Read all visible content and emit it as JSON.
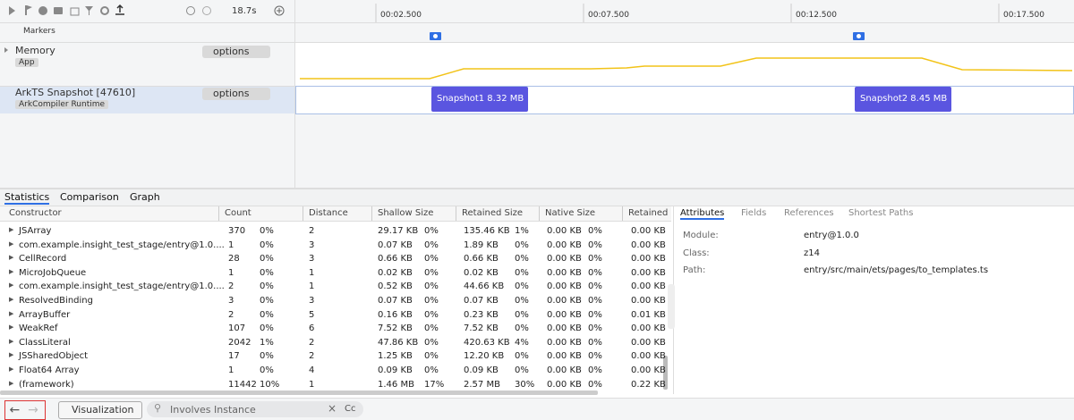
{
  "toolbar": {
    "duration": "18.7s"
  },
  "timeline": {
    "ticks": [
      "00:02.500",
      "00:07.500",
      "00:12.500",
      "00:17.500"
    ],
    "markers_label": "Markers"
  },
  "tracks": [
    {
      "title": "Memory",
      "tag": "App",
      "options": "options"
    },
    {
      "title": "ArkTS Snapshot [47610]",
      "tag": "ArkCompiler Runtime",
      "options": "options"
    }
  ],
  "snapshots": [
    "Snapshot1 8.32 MB",
    "Snapshot2 8.45 MB"
  ],
  "tabs": [
    "Statistics",
    "Comparison",
    "Graph"
  ],
  "table": {
    "columns": [
      "Constructor",
      "Count",
      "Distance",
      "Shallow Size",
      "Retained Size",
      "Native Size",
      "Retained"
    ],
    "rows": [
      [
        "JSArray",
        "370",
        "0%",
        "2",
        "29.17 KB",
        "0%",
        "135.46 KB",
        "1%",
        "0.00 KB",
        "0%",
        "0.00 KB"
      ],
      [
        "com.example.insight_test_stage/entry@1.0....",
        "1",
        "0%",
        "3",
        "0.07 KB",
        "0%",
        "1.89 KB",
        "0%",
        "0.00 KB",
        "0%",
        "0.00 KB"
      ],
      [
        "CellRecord",
        "28",
        "0%",
        "3",
        "0.66 KB",
        "0%",
        "0.66 KB",
        "0%",
        "0.00 KB",
        "0%",
        "0.00 KB"
      ],
      [
        "MicroJobQueue",
        "1",
        "0%",
        "1",
        "0.02 KB",
        "0%",
        "0.02 KB",
        "0%",
        "0.00 KB",
        "0%",
        "0.00 KB"
      ],
      [
        "com.example.insight_test_stage/entry@1.0....",
        "2",
        "0%",
        "1",
        "0.52 KB",
        "0%",
        "44.66 KB",
        "0%",
        "0.00 KB",
        "0%",
        "0.00 KB"
      ],
      [
        "ResolvedBinding",
        "3",
        "0%",
        "3",
        "0.07 KB",
        "0%",
        "0.07 KB",
        "0%",
        "0.00 KB",
        "0%",
        "0.00 KB"
      ],
      [
        "ArrayBuffer",
        "2",
        "0%",
        "5",
        "0.16 KB",
        "0%",
        "0.23 KB",
        "0%",
        "0.00 KB",
        "0%",
        "0.01 KB"
      ],
      [
        "WeakRef",
        "107",
        "0%",
        "6",
        "7.52 KB",
        "0%",
        "7.52 KB",
        "0%",
        "0.00 KB",
        "0%",
        "0.00 KB"
      ],
      [
        "ClassLiteral",
        "2042",
        "1%",
        "2",
        "47.86 KB",
        "0%",
        "420.63 KB",
        "4%",
        "0.00 KB",
        "0%",
        "0.00 KB"
      ],
      [
        "JSSharedObject",
        "17",
        "0%",
        "2",
        "1.25 KB",
        "0%",
        "12.20 KB",
        "0%",
        "0.00 KB",
        "0%",
        "0.00 KB"
      ],
      [
        "Float64 Array",
        "1",
        "0%",
        "4",
        "0.09 KB",
        "0%",
        "0.09 KB",
        "0%",
        "0.00 KB",
        "0%",
        "0.00 KB"
      ],
      [
        "(framework)",
        "11442",
        "10%",
        "1",
        "1.46 MB",
        "17%",
        "2.57 MB",
        "30%",
        "0.00 KB",
        "0%",
        "0.22 KB"
      ]
    ]
  },
  "details": {
    "tabs": [
      "Attributes",
      "Fields",
      "References",
      "Shortest Paths"
    ],
    "attributes": [
      {
        "key": "Module:",
        "value": "entry@1.0.0"
      },
      {
        "key": "Class:",
        "value": "z14"
      },
      {
        "key": "Path:",
        "value": "entry/src/main/ets/pages/to_templates.ts"
      }
    ]
  },
  "bottom": {
    "button": "Visualization",
    "search_placeholder": "Involves Instance",
    "case": "Cc"
  }
}
